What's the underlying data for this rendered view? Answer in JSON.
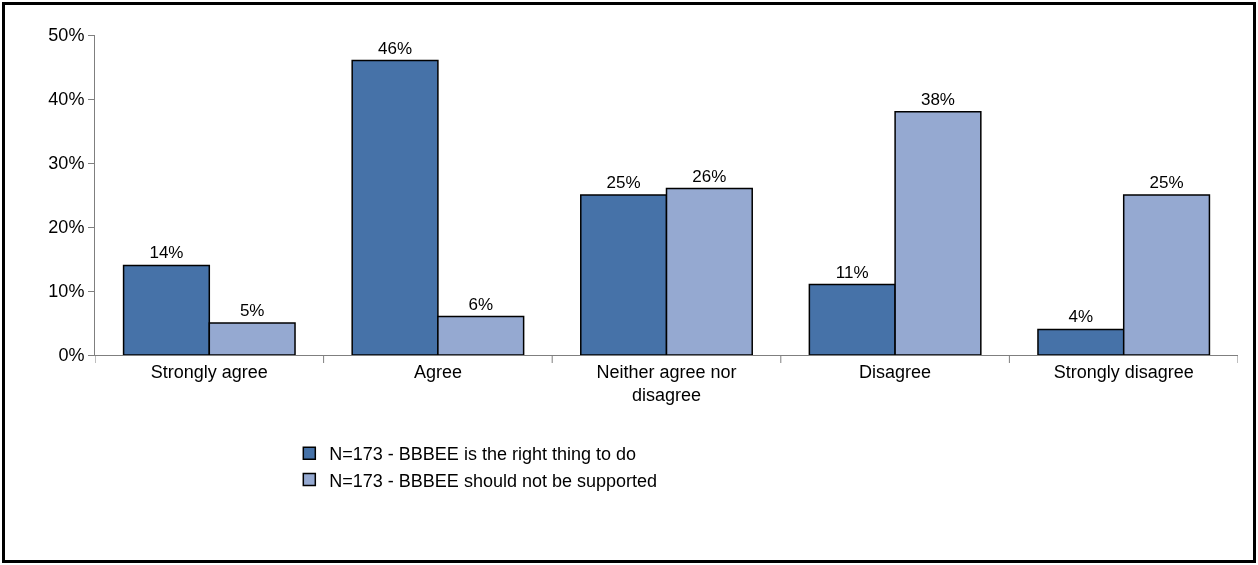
{
  "chart_data": {
    "type": "bar",
    "categories": [
      "Strongly agree",
      "Agree",
      "Neither agree nor disagree",
      "Disagree",
      "Strongly disagree"
    ],
    "series": [
      {
        "name": "N=173 - BBBEE is the right thing to do",
        "color": "#4672a8",
        "values": [
          14,
          46,
          25,
          11,
          4
        ],
        "value_labels": [
          "14%",
          "46%",
          "25%",
          "11%",
          "4%"
        ]
      },
      {
        "name": "N=173 - BBBEE should not be supported",
        "color": "#95a9d1",
        "values": [
          5,
          6,
          26,
          38,
          25
        ],
        "value_labels": [
          "5%",
          "6%",
          "26%",
          "38%",
          "25%"
        ]
      }
    ],
    "ylim": [
      0,
      50
    ],
    "yticks": [
      {
        "value": 0,
        "label": "0%"
      },
      {
        "value": 10,
        "label": "10%"
      },
      {
        "value": 20,
        "label": "20%"
      },
      {
        "value": 30,
        "label": "30%"
      },
      {
        "value": 40,
        "label": "40%"
      },
      {
        "value": 50,
        "label": "50%"
      }
    ],
    "grid": false,
    "legend": "bottom"
  }
}
